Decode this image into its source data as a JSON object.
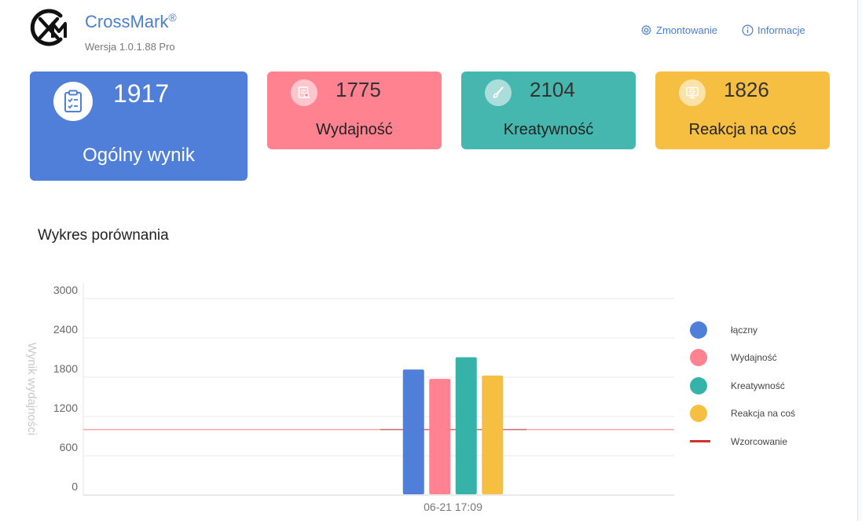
{
  "header": {
    "title": "CrossMark",
    "registered": "®",
    "version": "Wersja 1.0.1.88 Pro",
    "mount_label": "Zmontowanie",
    "info_label": "Informacje"
  },
  "cards": {
    "overall": {
      "score": "1917",
      "label": "Ogólny wynik",
      "icon": "clipboard-check-icon",
      "color": "#4f7fd9"
    },
    "performance": {
      "score": "1775",
      "label": "Wydajność",
      "icon": "document-search-icon",
      "color": "#ff8290"
    },
    "creativity": {
      "score": "2104",
      "label": "Kreatywność",
      "icon": "brush-icon",
      "color": "#46b7ae"
    },
    "reaction": {
      "score": "1826",
      "label": "Reakcja na coś",
      "icon": "monitor-globe-icon",
      "color": "#f6bf42"
    }
  },
  "section_title": "Wykres porównania",
  "chart_data": {
    "type": "bar",
    "categories": [
      "06-21 17:09"
    ],
    "series": [
      {
        "name": "łączny",
        "values": [
          1917
        ],
        "color": "#4f7fd9"
      },
      {
        "name": "Wydajność",
        "values": [
          1775
        ],
        "color": "#ff8290"
      },
      {
        "name": "Kreatywność",
        "values": [
          2104
        ],
        "color": "#36b3a9"
      },
      {
        "name": "Reakcja na coś",
        "values": [
          1826
        ],
        "color": "#f6bf42"
      }
    ],
    "reference_line": {
      "name": "Wzorcowanie",
      "value": 1000,
      "color": "#d03030"
    },
    "ylabel": "Wynik wydajności",
    "xlabel": "",
    "ylim": [
      0,
      3000
    ],
    "yticks": [
      0,
      600,
      1200,
      1800,
      2400,
      3000
    ],
    "grid": true,
    "legend_position": "right"
  }
}
